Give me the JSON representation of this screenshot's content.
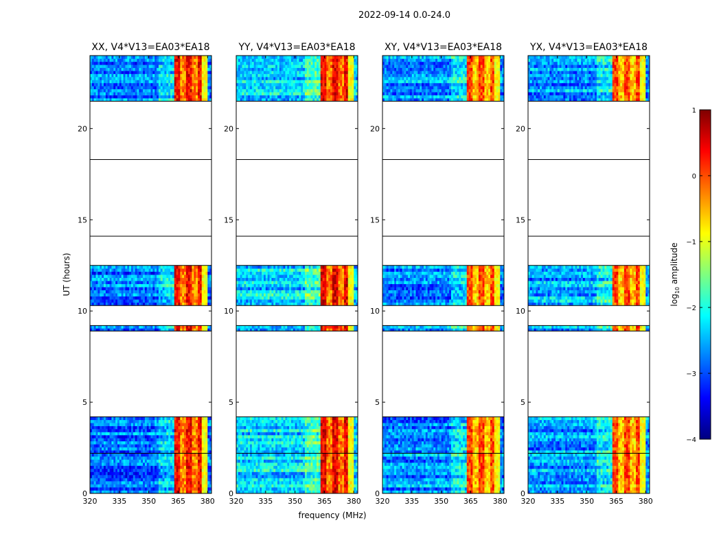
{
  "figure": {
    "suptitle": "2022-09-14 0.0-24.0",
    "xlabel": "frequency (MHz)",
    "ylabel": "UT (hours)"
  },
  "colorbar": {
    "label_pre": "log",
    "label_sub": "10",
    "label_post": " amplitude",
    "range": [
      -4,
      1
    ],
    "ticks": [
      1,
      0,
      -1,
      -2,
      -3,
      -4
    ],
    "tick_labels": [
      "1",
      "0",
      "−1",
      "−2",
      "−3",
      "−4"
    ],
    "colormap": [
      "#00007f",
      "#0000ff",
      "#007fff",
      "#00ffff",
      "#7fff7f",
      "#ffff00",
      "#ff7f00",
      "#ff0000",
      "#7f0000"
    ]
  },
  "chart_data": [
    {
      "type": "heatmap",
      "title": "XX, V4*V13=EA03*EA18",
      "xlabel": "frequency (MHz)",
      "ylabel": "UT (hours)",
      "xlim": [
        320,
        382
      ],
      "ylim": [
        0,
        24
      ],
      "xticks": [
        320,
        335,
        350,
        365,
        380
      ],
      "yticks": [
        0,
        5,
        10,
        15,
        20
      ],
      "data_segments_ut_hours": [
        [
          0,
          2.2
        ],
        [
          2.2,
          4.2
        ],
        [
          8.9,
          9.2
        ],
        [
          10.3,
          12.5
        ],
        [
          21.5,
          24
        ]
      ],
      "empty_ranges_ut_hours": [
        [
          4.2,
          8.9
        ],
        [
          9.2,
          10.3
        ],
        [
          12.5,
          21.5
        ]
      ],
      "horizontal_rules_ut_hours": [
        14.1,
        18.3
      ],
      "high_amplitude_band_mhz": [
        363.5,
        377
      ],
      "quiet_band_log10_amplitude": -2.8,
      "hot_band_log10_amplitude": 0.2
    },
    {
      "type": "heatmap",
      "title": "YY, V4*V13=EA03*EA18",
      "xlabel": "frequency (MHz)",
      "ylabel": "UT (hours)",
      "xlim": [
        320,
        382
      ],
      "ylim": [
        0,
        24
      ],
      "xticks": [
        320,
        335,
        350,
        365,
        380
      ],
      "yticks": [
        0,
        5,
        10,
        15,
        20
      ],
      "data_segments_ut_hours": [
        [
          0,
          2.2
        ],
        [
          2.2,
          4.2
        ],
        [
          8.9,
          9.2
        ],
        [
          10.3,
          12.5
        ],
        [
          21.5,
          24
        ]
      ],
      "empty_ranges_ut_hours": [
        [
          4.2,
          8.9
        ],
        [
          9.2,
          10.3
        ],
        [
          12.5,
          21.5
        ]
      ],
      "horizontal_rules_ut_hours": [
        14.1,
        18.3
      ],
      "high_amplitude_band_mhz": [
        363.5,
        377
      ],
      "quiet_band_log10_amplitude": -2.3,
      "hot_band_log10_amplitude": 0.3
    },
    {
      "type": "heatmap",
      "title": "XY, V4*V13=EA03*EA18",
      "xlabel": "frequency (MHz)",
      "ylabel": "UT (hours)",
      "xlim": [
        320,
        382
      ],
      "ylim": [
        0,
        24
      ],
      "xticks": [
        320,
        335,
        350,
        365,
        380
      ],
      "yticks": [
        0,
        5,
        10,
        15,
        20
      ],
      "data_segments_ut_hours": [
        [
          0,
          2.2
        ],
        [
          2.2,
          4.2
        ],
        [
          8.9,
          9.2
        ],
        [
          10.3,
          12.5
        ],
        [
          21.5,
          24
        ]
      ],
      "empty_ranges_ut_hours": [
        [
          4.2,
          8.9
        ],
        [
          9.2,
          10.3
        ],
        [
          12.5,
          21.5
        ]
      ],
      "horizontal_rules_ut_hours": [
        14.1,
        18.3
      ],
      "high_amplitude_band_mhz": [
        363.5,
        377
      ],
      "quiet_band_log10_amplitude": -2.7,
      "hot_band_log10_amplitude": -0.1
    },
    {
      "type": "heatmap",
      "title": "YX, V4*V13=EA03*EA18",
      "xlabel": "frequency (MHz)",
      "ylabel": "UT (hours)",
      "xlim": [
        320,
        382
      ],
      "ylim": [
        0,
        24
      ],
      "xticks": [
        320,
        335,
        350,
        365,
        380
      ],
      "yticks": [
        0,
        5,
        10,
        15,
        20
      ],
      "data_segments_ut_hours": [
        [
          0,
          2.2
        ],
        [
          2.2,
          4.2
        ],
        [
          8.9,
          9.2
        ],
        [
          10.3,
          12.5
        ],
        [
          21.5,
          24
        ]
      ],
      "empty_ranges_ut_hours": [
        [
          4.2,
          8.9
        ],
        [
          9.2,
          10.3
        ],
        [
          12.5,
          21.5
        ]
      ],
      "horizontal_rules_ut_hours": [
        14.1,
        18.3
      ],
      "high_amplitude_band_mhz": [
        363.5,
        377
      ],
      "quiet_band_log10_amplitude": -2.6,
      "hot_band_log10_amplitude": -0.1
    }
  ]
}
